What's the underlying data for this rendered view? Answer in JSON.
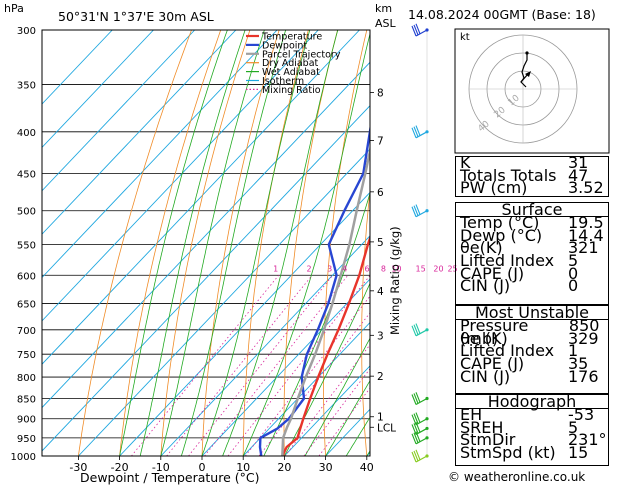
{
  "header": {
    "station": "50°31'N  1°37'E  30m  ASL",
    "date": "14.08.2024  00GMT  (Base: 18)",
    "pressure_unit": "hPa",
    "km_unit": "km",
    "asl_label": "ASL"
  },
  "legend": [
    {
      "label": "Temperature",
      "color": "#e8342b"
    },
    {
      "label": "Dewpoint",
      "color": "#2846d2"
    },
    {
      "label": "Parcel Trajectory",
      "color": "#a0a0a0"
    },
    {
      "label": "Dry Adiabat",
      "color": "#f08c28"
    },
    {
      "label": "Wet Adiabat",
      "color": "#22aa22"
    },
    {
      "label": "Isotherm",
      "color": "#20a8e0"
    },
    {
      "label": "Mixing Ratio",
      "color": "#d8259a"
    }
  ],
  "chart_data": {
    "type": "line",
    "xlabel": "Dewpoint / Temperature (°C)",
    "ylabel": "Mixing Ratio (g/kg)",
    "xlim": [
      -35,
      40
    ],
    "ylim": [
      1000,
      300
    ],
    "x_ticks": [
      -30,
      -20,
      -10,
      0,
      10,
      20,
      30,
      40
    ],
    "pressure_levels": [
      300,
      350,
      400,
      450,
      500,
      550,
      600,
      650,
      700,
      750,
      800,
      850,
      900,
      950,
      1000
    ],
    "km_ticks": [
      {
        "label": "8",
        "p": 358
      },
      {
        "label": "7",
        "p": 410
      },
      {
        "label": "6",
        "p": 474
      },
      {
        "label": "5",
        "p": 546
      },
      {
        "label": "4",
        "p": 627
      },
      {
        "label": "3",
        "p": 711
      },
      {
        "label": "2",
        "p": 798
      },
      {
        "label": "1",
        "p": 895
      },
      {
        "label": "LCL",
        "p": 922
      }
    ],
    "mixing_ratio_labels": [
      "1",
      "2",
      "3",
      "4",
      "6",
      "8",
      "10",
      "15",
      "20",
      "25"
    ],
    "mixing_ratio_values": [
      1,
      2,
      3,
      4,
      6,
      8,
      10,
      15,
      20,
      25
    ],
    "series": [
      {
        "name": "Temperature",
        "color": "#e8342b",
        "p": [
          1000,
          975,
          950,
          925,
          900,
          850,
          800,
          750,
          700,
          650,
          600,
          550,
          500,
          450,
          400,
          350,
          300
        ],
        "t": [
          19.5,
          18.5,
          19.0,
          17.5,
          16.0,
          13.0,
          10.0,
          7.0,
          4.0,
          0.5,
          -3.5,
          -8.5,
          -13.5,
          -19.5,
          -26.0,
          -33.0,
          -42.0
        ]
      },
      {
        "name": "Dewpoint",
        "color": "#2846d2",
        "p": [
          1000,
          975,
          950,
          925,
          900,
          850,
          800,
          750,
          700,
          650,
          600,
          550,
          500,
          450,
          400,
          350,
          300
        ],
        "t": [
          14.4,
          12.0,
          10.0,
          12.0,
          12.5,
          11.5,
          6.0,
          2.0,
          -1.0,
          -4.5,
          -9.0,
          -18.0,
          -22.0,
          -26.0,
          -34.0,
          -43.0,
          -50.0
        ]
      },
      {
        "name": "Parcel Trajectory",
        "color": "#a0a0a0",
        "p": [
          1000,
          950,
          922,
          900,
          850,
          800,
          750,
          700,
          650,
          600,
          550,
          500,
          450,
          400,
          350,
          300
        ],
        "t": [
          19.5,
          15.5,
          14.0,
          13.0,
          10.0,
          7.0,
          4.0,
          0.5,
          -3.5,
          -8.0,
          -13.0,
          -19.0,
          -25.5,
          -33.0,
          -42.0,
          -52.0
        ]
      }
    ],
    "wind_barbs": [
      {
        "p": 300,
        "color": "#2040d0"
      },
      {
        "p": 400,
        "color": "#20a8e0"
      },
      {
        "p": 500,
        "color": "#20a8e0"
      },
      {
        "p": 700,
        "color": "#20c8a8"
      },
      {
        "p": 850,
        "color": "#22aa22"
      },
      {
        "p": 900,
        "color": "#22aa22"
      },
      {
        "p": 925,
        "color": "#22aa22"
      },
      {
        "p": 950,
        "color": "#22aa22"
      },
      {
        "p": 1000,
        "color": "#88cc22"
      }
    ]
  },
  "hodograph": {
    "unit": "kt",
    "ring_labels": [
      "10",
      "20",
      "40"
    ]
  },
  "indices": [
    {
      "label": "K",
      "value": "31"
    },
    {
      "label": "Totals Totals",
      "value": "47"
    },
    {
      "label": "PW (cm)",
      "value": "3.52"
    }
  ],
  "surface": {
    "title": "Surface",
    "rows": [
      {
        "label": "Temp (°C)",
        "value": "19.5"
      },
      {
        "label": "Dewp (°C)",
        "value": "14.4"
      },
      {
        "label": "θe(K)",
        "value": "321"
      },
      {
        "label": "Lifted Index",
        "value": "5"
      },
      {
        "label": "CAPE (J)",
        "value": "0"
      },
      {
        "label": "CIN (J)",
        "value": "0"
      }
    ]
  },
  "most_unstable": {
    "title": "Most Unstable",
    "rows": [
      {
        "label": "Pressure (mb)",
        "value": "850"
      },
      {
        "label": "θe (K)",
        "value": "329"
      },
      {
        "label": "Lifted Index",
        "value": "1"
      },
      {
        "label": "CAPE (J)",
        "value": "35"
      },
      {
        "label": "CIN (J)",
        "value": "176"
      }
    ]
  },
  "hodograph_table": {
    "title": "Hodograph",
    "rows": [
      {
        "label": "EH",
        "value": "-53"
      },
      {
        "label": "SREH",
        "value": "5"
      },
      {
        "label": "StmDir",
        "value": "231°"
      },
      {
        "label": "StmSpd (kt)",
        "value": "15"
      }
    ]
  },
  "footer": "© weatheronline.co.uk"
}
